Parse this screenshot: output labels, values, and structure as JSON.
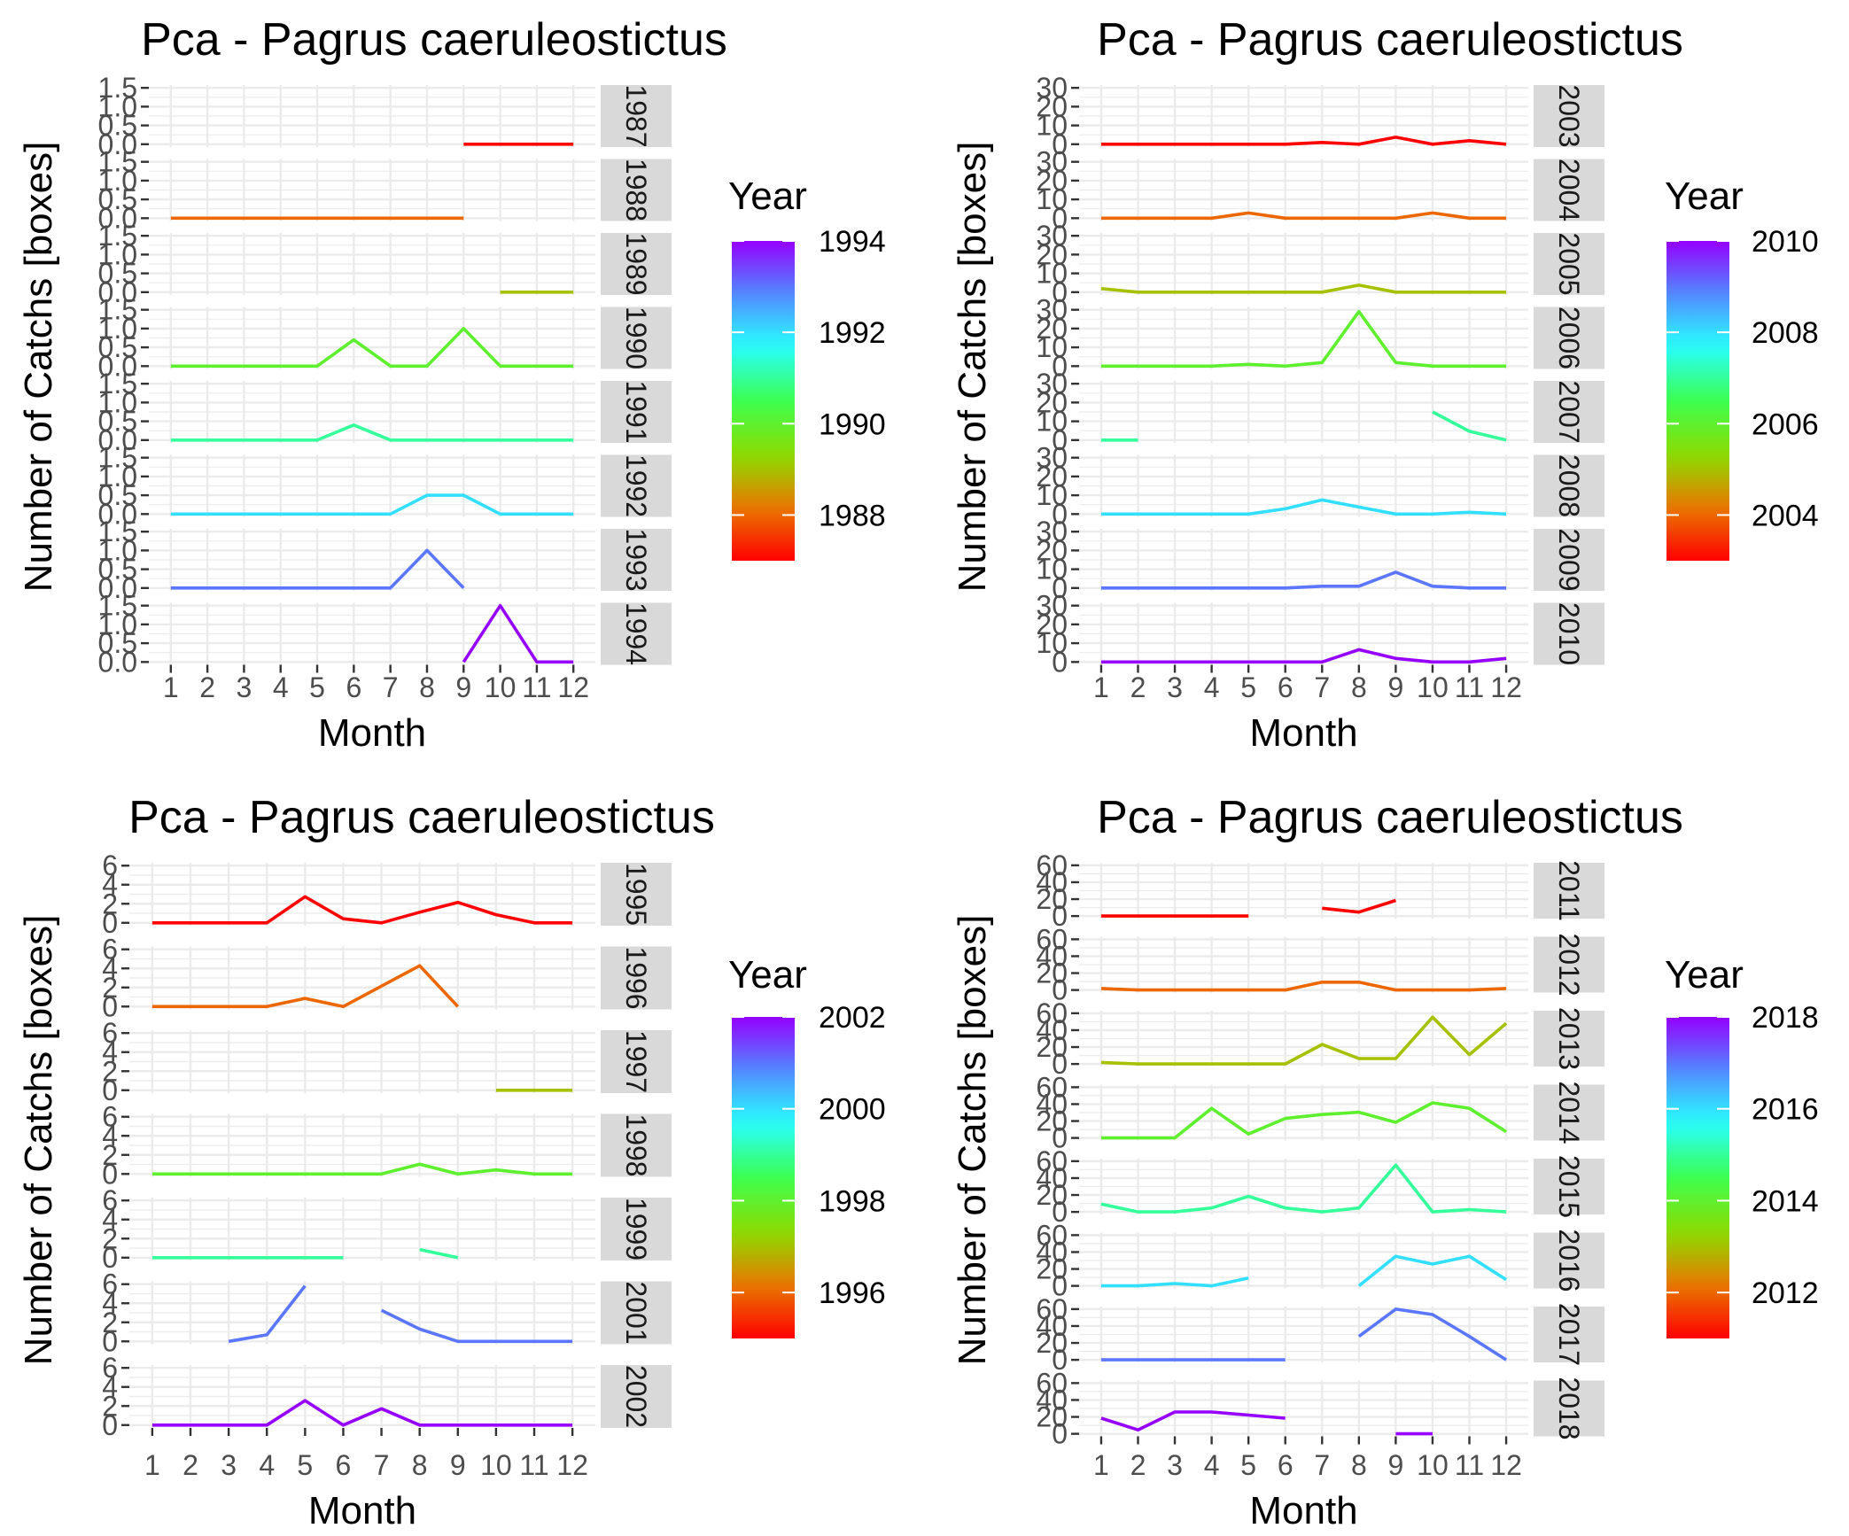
{
  "chart_data": [
    {
      "type": "line",
      "layout": "faceted-by-year",
      "title": "Pca - Pagrus caeruleostictus",
      "xlabel": "Month",
      "ylabel": "Number of Catchs [boxes]",
      "x": [
        1,
        2,
        3,
        4,
        5,
        6,
        7,
        8,
        9,
        10,
        11,
        12
      ],
      "yticks": [
        "0.0",
        "0.5",
        "1.0",
        "1.5"
      ],
      "ylim": [
        0,
        1.5
      ],
      "legend": {
        "title": "Year",
        "labels": [
          "1994",
          "1992",
          "1990",
          "1988"
        ],
        "min": 1987,
        "max": 1994,
        "position": "right"
      },
      "grid": true,
      "series": [
        {
          "name": "1987",
          "values": [
            null,
            null,
            null,
            null,
            null,
            null,
            null,
            null,
            0,
            0,
            0,
            0
          ]
        },
        {
          "name": "1988",
          "values": [
            0,
            0,
            0,
            0,
            0,
            0,
            0,
            0,
            0,
            null,
            null,
            null
          ]
        },
        {
          "name": "1989",
          "values": [
            null,
            null,
            null,
            null,
            null,
            null,
            null,
            null,
            null,
            0,
            0,
            0
          ]
        },
        {
          "name": "1990",
          "values": [
            0,
            0,
            0,
            0,
            0,
            0.7,
            0,
            0,
            1,
            0,
            0,
            0
          ]
        },
        {
          "name": "1991",
          "values": [
            0,
            0,
            0,
            0,
            0,
            0.4,
            0,
            0,
            0,
            0,
            0,
            0
          ]
        },
        {
          "name": "1992",
          "values": [
            0,
            0,
            0,
            0,
            0,
            0,
            0,
            0.5,
            0.5,
            0,
            0,
            0
          ]
        },
        {
          "name": "1993",
          "values": [
            0,
            0,
            0,
            0,
            0,
            0,
            0,
            1,
            0,
            null,
            null,
            null
          ]
        },
        {
          "name": "1994",
          "values": [
            null,
            null,
            null,
            null,
            null,
            null,
            null,
            null,
            0,
            1.5,
            0,
            0
          ]
        }
      ]
    },
    {
      "type": "line",
      "layout": "faceted-by-year",
      "title": "Pca - Pagrus caeruleostictus",
      "xlabel": "Month",
      "ylabel": "Number of Catchs [boxes]",
      "x": [
        1,
        2,
        3,
        4,
        5,
        6,
        7,
        8,
        9,
        10,
        11,
        12
      ],
      "yticks": [
        "0",
        "10",
        "20",
        "30"
      ],
      "ylim": [
        0,
        32
      ],
      "legend": {
        "title": "Year",
        "labels": [
          "2010",
          "2008",
          "2006",
          "2004"
        ],
        "min": 2003,
        "max": 2010,
        "position": "right"
      },
      "grid": true,
      "series": [
        {
          "name": "2003",
          "values": [
            0,
            0,
            0,
            0,
            0,
            0,
            1,
            0,
            4,
            0,
            2,
            0
          ]
        },
        {
          "name": "2004",
          "values": [
            0,
            0,
            0,
            0,
            3,
            0,
            0,
            0,
            0,
            3,
            0,
            0
          ]
        },
        {
          "name": "2005",
          "values": [
            2,
            0,
            0,
            0,
            0,
            0,
            0,
            4,
            0,
            0,
            0,
            0
          ]
        },
        {
          "name": "2006",
          "values": [
            0,
            0,
            0,
            0,
            1,
            0,
            2,
            31,
            2,
            0,
            0,
            0
          ]
        },
        {
          "name": "2007",
          "values": [
            0,
            0,
            null,
            null,
            null,
            null,
            null,
            null,
            null,
            16,
            5,
            0
          ]
        },
        {
          "name": "2008",
          "values": [
            0,
            0,
            0,
            0,
            0,
            3,
            8,
            4,
            0,
            0,
            1,
            0
          ]
        },
        {
          "name": "2009",
          "values": [
            0,
            0,
            0,
            0,
            0,
            0,
            1,
            1,
            9,
            1,
            0,
            0
          ]
        },
        {
          "name": "2010",
          "values": [
            0,
            0,
            0,
            0,
            0,
            0,
            0,
            7,
            2,
            0,
            0,
            2
          ]
        }
      ]
    },
    {
      "type": "line",
      "layout": "faceted-by-year",
      "title": "Pca - Pagrus caeruleostictus",
      "xlabel": "Month",
      "ylabel": "Number of Catchs [boxes]",
      "x": [
        1,
        2,
        3,
        4,
        5,
        6,
        7,
        8,
        9,
        10,
        11,
        12
      ],
      "yticks": [
        "0",
        "2",
        "4",
        "6"
      ],
      "ylim": [
        0,
        7
      ],
      "legend": {
        "title": "Year",
        "labels": [
          "2002",
          "2000",
          "1998",
          "1996"
        ],
        "min": 1995,
        "max": 2002,
        "position": "right"
      },
      "grid": true,
      "series": [
        {
          "name": "1995",
          "values": [
            0,
            0,
            0,
            0,
            3.2,
            0.5,
            0,
            1.3,
            2.5,
            1,
            0,
            0
          ]
        },
        {
          "name": "1996",
          "values": [
            0,
            0,
            0,
            0,
            1,
            0,
            2.5,
            5,
            0,
            null,
            null,
            null
          ]
        },
        {
          "name": "1997",
          "values": [
            null,
            null,
            null,
            null,
            null,
            null,
            null,
            null,
            null,
            0,
            0,
            0
          ]
        },
        {
          "name": "1998",
          "values": [
            0,
            0,
            0,
            0,
            0,
            0,
            0,
            1.2,
            0,
            0.5,
            0,
            0
          ]
        },
        {
          "name": "1999",
          "values": [
            0,
            0,
            0,
            0,
            0,
            0,
            null,
            1,
            0,
            null,
            null,
            null
          ]
        },
        {
          "name": "2001",
          "values": [
            null,
            null,
            0,
            0.8,
            6.8,
            null,
            3.8,
            1.5,
            0,
            0,
            0,
            0
          ]
        },
        {
          "name": "2002",
          "values": [
            0,
            0,
            0,
            0,
            3,
            0,
            2,
            0,
            0,
            0,
            0,
            0
          ]
        }
      ]
    },
    {
      "type": "line",
      "layout": "faceted-by-year",
      "title": "Pca - Pagrus caeruleostictus",
      "xlabel": "Month",
      "ylabel": "Number of Catchs [boxes]",
      "x": [
        1,
        2,
        3,
        4,
        5,
        6,
        7,
        8,
        9,
        10,
        11,
        12
      ],
      "yticks": [
        "0",
        "20",
        "40",
        "60"
      ],
      "ylim": [
        0,
        65
      ],
      "legend": {
        "title": "Year",
        "labels": [
          "2018",
          "2016",
          "2014",
          "2012"
        ],
        "min": 2011,
        "max": 2018,
        "position": "right"
      },
      "grid": true,
      "series": [
        {
          "name": "2011",
          "values": [
            0,
            0,
            0,
            0,
            0,
            null,
            10,
            5,
            20,
            null,
            null,
            null
          ]
        },
        {
          "name": "2012",
          "values": [
            2,
            0,
            0,
            0,
            0,
            0,
            10,
            10,
            0,
            0,
            0,
            2
          ]
        },
        {
          "name": "2013",
          "values": [
            2,
            0,
            0,
            0,
            0,
            0,
            25,
            7,
            7,
            60,
            12,
            52
          ]
        },
        {
          "name": "2014",
          "values": [
            0,
            0,
            0,
            38,
            5,
            25,
            30,
            33,
            20,
            45,
            38,
            8
          ]
        },
        {
          "name": "2015",
          "values": [
            10,
            0,
            0,
            5,
            20,
            5,
            0,
            5,
            60,
            0,
            3,
            0
          ]
        },
        {
          "name": "2016",
          "values": [
            0,
            0,
            3,
            0,
            10,
            null,
            null,
            0,
            38,
            28,
            38,
            8
          ]
        },
        {
          "name": "2017",
          "values": [
            0,
            0,
            0,
            0,
            0,
            0,
            null,
            30,
            65,
            58,
            30,
            0
          ]
        },
        {
          "name": "2018",
          "values": [
            20,
            5,
            28,
            28,
            24,
            20,
            null,
            null,
            0,
            0,
            null,
            null
          ]
        }
      ]
    }
  ]
}
